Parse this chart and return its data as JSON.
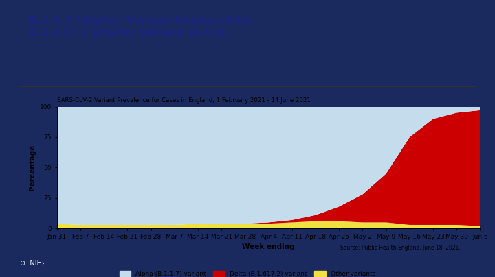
{
  "title": "B.1.1.7 (Alpha) Variant Replaced by\nB.1.617.2 (Delta) Variant in U.K.",
  "subtitle": "SARS-CoV-2 Variant Prevalence for Cases in England, 1 February 2021 - 14 June 2021",
  "xlabel": "Week ending",
  "ylabel": "Percentage",
  "source": "Source: Public Health England, June 18, 2021.",
  "x_labels": [
    "Jan 31",
    "Feb 7",
    "Feb 14",
    "Feb 21",
    "Feb 28",
    "Mar 7",
    "Mar 14",
    "Mar 21",
    "Mar 28",
    "Apr 4",
    "Apr 11",
    "Apr 18",
    "Apr 25",
    "May 2",
    "May 9",
    "May 16",
    "May 23",
    "May 30",
    "Jun 6"
  ],
  "alpha_values": [
    96,
    97,
    97,
    97,
    97,
    97,
    96,
    96,
    96,
    95,
    93,
    89,
    82,
    72,
    55,
    25,
    10,
    5,
    3
  ],
  "delta_values": [
    0,
    0,
    0,
    0,
    0,
    0,
    0,
    0,
    0,
    1,
    2,
    5,
    12,
    23,
    40,
    72,
    87,
    92,
    95
  ],
  "other_values": [
    4,
    3,
    3,
    3,
    3,
    3,
    4,
    4,
    4,
    4,
    5,
    6,
    6,
    5,
    5,
    3,
    3,
    3,
    2
  ],
  "alpha_color": "#c5dcec",
  "delta_color": "#cc0000",
  "other_color": "#f0e040",
  "outer_background": "#1b2a5e",
  "white_panel": "#ffffff",
  "title_color": "#1a237e",
  "chart_facecolor": "#ffffff",
  "ylim": [
    0,
    100
  ],
  "legend_labels": [
    "Alpha (B.1.1.7) variant",
    "Delta (B.1.617.2) variant",
    "Other variants"
  ]
}
